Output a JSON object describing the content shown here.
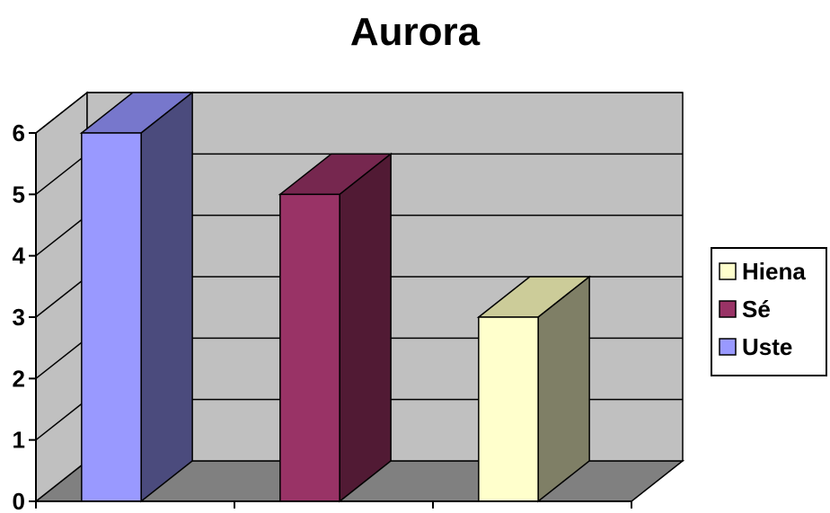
{
  "chart_data": {
    "type": "bar",
    "title": "Aurora",
    "xlabel": "",
    "ylabel": "",
    "ylim": [
      0,
      6
    ],
    "yticks": [
      0,
      1,
      2,
      3,
      4,
      5,
      6
    ],
    "categories": [
      "",
      "",
      ""
    ],
    "grid": true,
    "three_d": true,
    "legend_position": "right",
    "series": [
      {
        "name": "Uste",
        "values": [
          6,
          0,
          0
        ],
        "color": "#9999FF",
        "side_color": "#4B4B7D",
        "top_color": "#7777CC"
      },
      {
        "name": "Sé",
        "values": [
          0,
          5,
          0
        ],
        "color": "#993366",
        "side_color": "#511A34",
        "top_color": "#76274F"
      },
      {
        "name": "Hiena",
        "values": [
          0,
          0,
          3
        ],
        "color": "#FFFFCC",
        "side_color": "#7F7F66",
        "top_color": "#CCCC99"
      }
    ],
    "legend_order": [
      "Hiena",
      "Sé",
      "Uste"
    ],
    "wall_color": "#C0C0C0",
    "floor_color": "#808080"
  }
}
